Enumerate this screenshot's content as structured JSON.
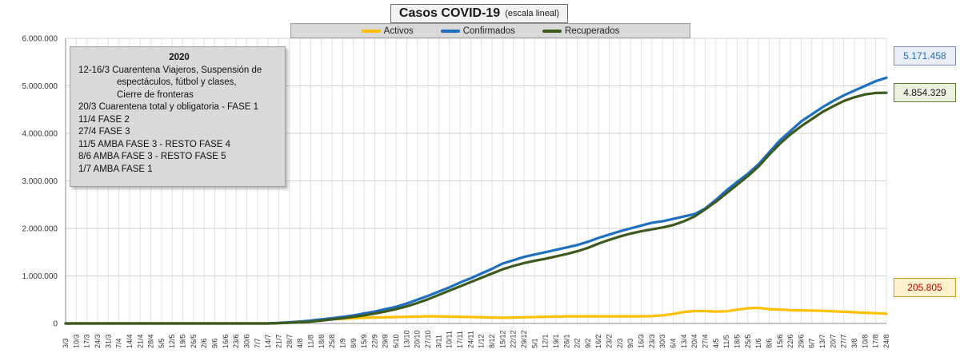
{
  "chart_data": {
    "type": "line",
    "title": "Casos  COVID-19",
    "subtitle": "(escala lineal)",
    "ylim": [
      0,
      6000000
    ],
    "y_ticks": [
      "0",
      "1.000.000",
      "2.000.000",
      "3.000.000",
      "4.000.000",
      "5.000.000",
      "6.000.000"
    ],
    "y_tick_values": [
      0,
      1000000,
      2000000,
      3000000,
      4000000,
      5000000,
      6000000
    ],
    "x_tick_labels": [
      "3/3",
      "10/3",
      "17/3",
      "24/3",
      "31/3",
      "7/4",
      "14/4",
      "21/4",
      "28/4",
      "5/5",
      "12/5",
      "19/5",
      "26/5",
      "2/6",
      "9/6",
      "16/6",
      "23/6",
      "30/6",
      "7/7",
      "14/7",
      "21/7",
      "28/7",
      "4/8",
      "11/8",
      "18/8",
      "25/8",
      "1/9",
      "8/9",
      "15/9",
      "22/9",
      "29/9",
      "6/10",
      "13/10",
      "20/10",
      "27/10",
      "3/11",
      "10/11",
      "17/11",
      "24/11",
      "1/12",
      "8/12",
      "15/12",
      "22/12",
      "29/12",
      "5/1",
      "12/1",
      "19/1",
      "26/1",
      "2/2",
      "9/2",
      "16/2",
      "23/2",
      "2/3",
      "9/3",
      "16/3",
      "23/3",
      "30/3",
      "6/4",
      "13/4",
      "20/4",
      "27/4",
      "4/5",
      "11/5",
      "18/5",
      "25/5",
      "1/6",
      "8/6",
      "15/6",
      "22/6",
      "29/6",
      "6/7",
      "13/7",
      "20/7",
      "27/7",
      "3/8",
      "10/8",
      "17/8",
      "24/8"
    ],
    "grid": true,
    "legend_position": "top-center",
    "series": [
      {
        "name": "Activos",
        "color": "#ffc000",
        "values": [
          0,
          0,
          0,
          0,
          0,
          0,
          0,
          0,
          0,
          0,
          0,
          0,
          0,
          0,
          0,
          0,
          0,
          0,
          0,
          0,
          10000,
          20000,
          30000,
          50000,
          70000,
          90000,
          100000,
          110000,
          120000,
          125000,
          130000,
          135000,
          140000,
          145000,
          150000,
          150000,
          145000,
          140000,
          135000,
          130000,
          125000,
          120000,
          125000,
          130000,
          135000,
          140000,
          145000,
          150000,
          150000,
          150000,
          150000,
          150000,
          150000,
          150000,
          150000,
          155000,
          170000,
          200000,
          240000,
          260000,
          260000,
          250000,
          255000,
          290000,
          320000,
          330000,
          300000,
          290000,
          280000,
          275000,
          270000,
          265000,
          255000,
          245000,
          235000,
          225000,
          215000,
          205805
        ]
      },
      {
        "name": "Confirmados",
        "color": "#1f6fc1",
        "values": [
          0,
          0,
          0,
          0,
          0,
          0,
          0,
          0,
          0,
          0,
          0,
          0,
          0,
          0,
          0,
          0,
          0,
          0,
          0,
          0,
          10000,
          25000,
          40000,
          60000,
          85000,
          110000,
          140000,
          170000,
          210000,
          250000,
          300000,
          350000,
          420000,
          500000,
          580000,
          670000,
          760000,
          860000,
          950000,
          1050000,
          1150000,
          1260000,
          1330000,
          1400000,
          1450000,
          1500000,
          1550000,
          1600000,
          1650000,
          1720000,
          1800000,
          1870000,
          1940000,
          2000000,
          2060000,
          2120000,
          2150000,
          2200000,
          2250000,
          2300000,
          2420000,
          2600000,
          2800000,
          2980000,
          3150000,
          3350000,
          3600000,
          3850000,
          4050000,
          4250000,
          4400000,
          4550000,
          4680000,
          4800000,
          4900000,
          5000000,
          5100000,
          5171458
        ]
      },
      {
        "name": "Recuperados",
        "color": "#3d5a1e",
        "values": [
          0,
          0,
          0,
          0,
          0,
          0,
          0,
          0,
          0,
          0,
          0,
          0,
          0,
          0,
          0,
          0,
          0,
          0,
          0,
          0,
          5000,
          15000,
          25000,
          40000,
          60000,
          85000,
          110000,
          140000,
          170000,
          210000,
          250000,
          300000,
          360000,
          430000,
          510000,
          600000,
          690000,
          780000,
          870000,
          960000,
          1050000,
          1140000,
          1210000,
          1270000,
          1320000,
          1360000,
          1410000,
          1460000,
          1520000,
          1590000,
          1680000,
          1760000,
          1830000,
          1890000,
          1940000,
          1980000,
          2020000,
          2070000,
          2150000,
          2250000,
          2400000,
          2560000,
          2740000,
          2920000,
          3100000,
          3300000,
          3550000,
          3780000,
          3980000,
          4150000,
          4300000,
          4450000,
          4570000,
          4680000,
          4760000,
          4820000,
          4850000,
          4854329
        ]
      }
    ],
    "end_labels": {
      "activos": "205.805",
      "confirmados": "5.171.458",
      "recuperados": "4.854.329"
    },
    "end_label_colors": {
      "activos": "#c00000",
      "confirmados": "#1f6fc1",
      "recuperados": "#1a1a1a"
    }
  },
  "notes": {
    "year": "2020",
    "lines": [
      "12-16/3  Cuarentena Viajeros, Suspensión de",
      "espectáculos, fútbol y clases,",
      "Cierre de fronteras",
      "20/3 Cuarentena total y obligatoria - FASE 1",
      "11/4 FASE 2",
      "27/4 FASE 3",
      "11/5 AMBA FASE 3 - RESTO FASE 4",
      "8/6 AMBA FASE 3  - RESTO FASE 5",
      "1/7 AMBA FASE 1"
    ]
  }
}
